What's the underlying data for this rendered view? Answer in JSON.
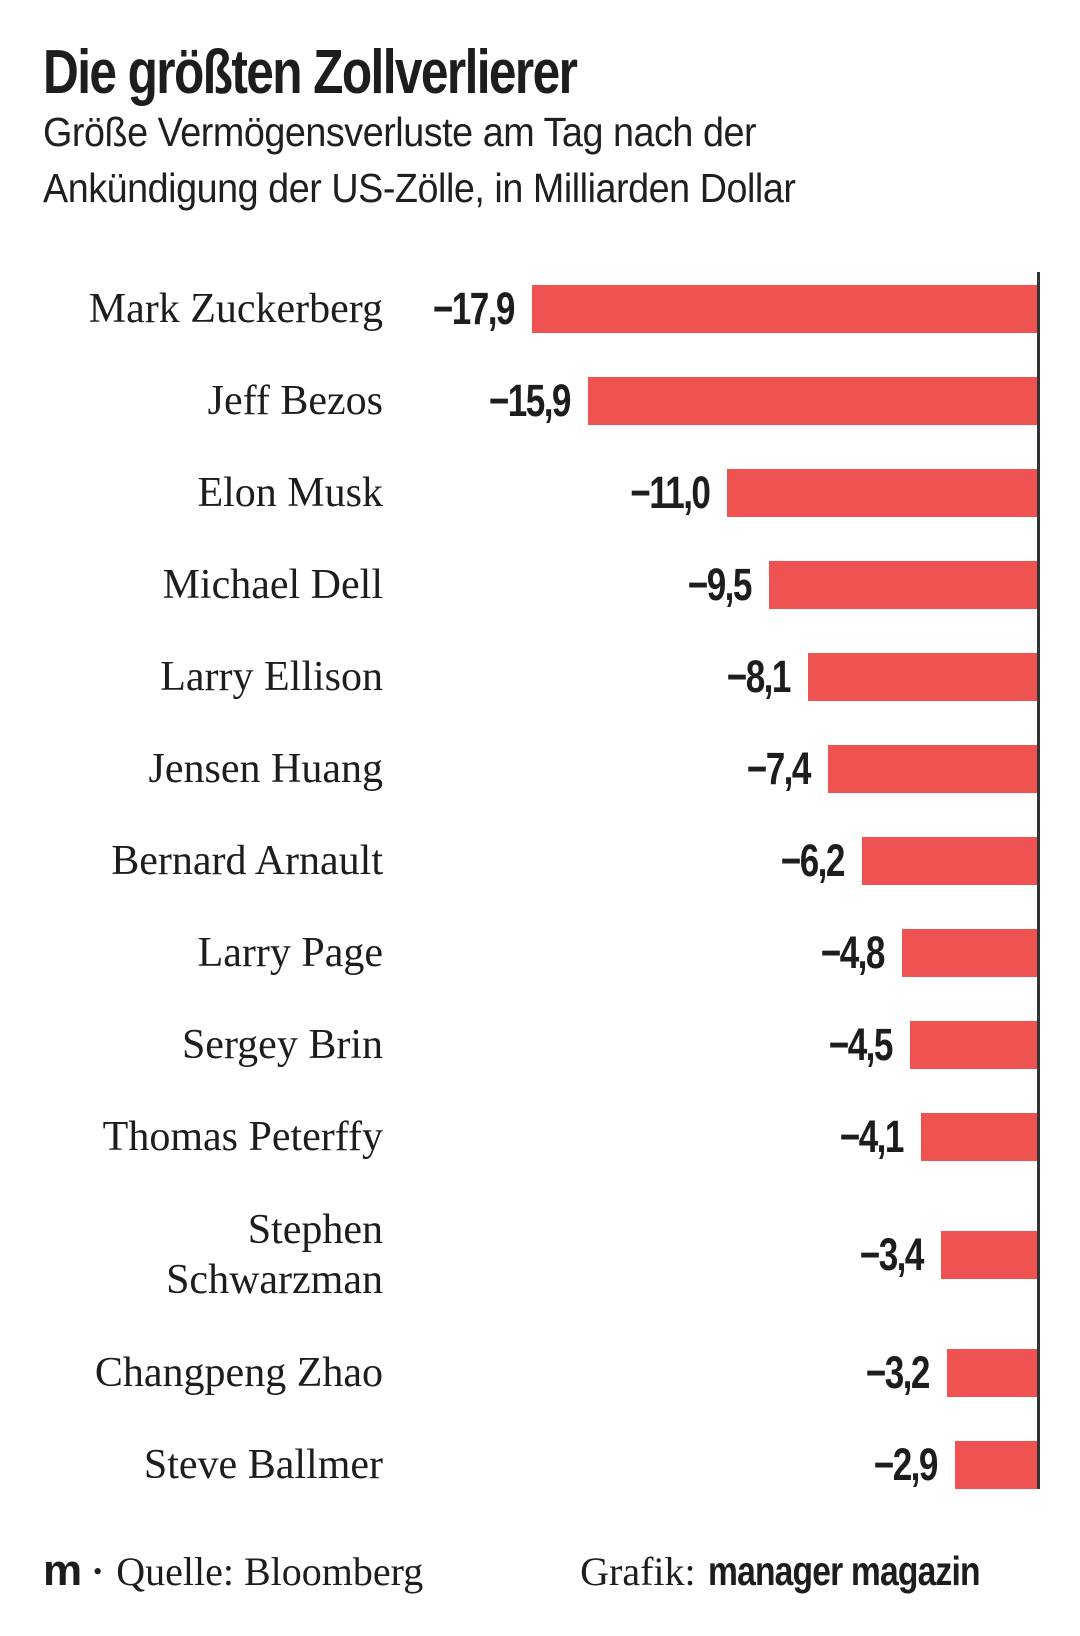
{
  "title": "Die größten Zollverlierer",
  "subtitle_lines": {
    "line1": "Größe Vermögensverluste am Tag nach der",
    "line2": "Ankündigung der US-Zölle, in Milliarden Dollar"
  },
  "footer": {
    "logo": "m",
    "bullet": "•",
    "source": "Quelle: Bloomberg",
    "credit_prefix": "Grafik:",
    "credit_brand": "manager magazin"
  },
  "colors": {
    "bar": "#EF5351",
    "axis": "#333333",
    "text": "#1D1D1B"
  },
  "chart_data": {
    "type": "bar",
    "orientation": "horizontal",
    "anchor": "right-axis-at-zero",
    "title": "Die größten Zollverlierer",
    "subtitle": "Größe Vermögensverluste am Tag nach der Ankündigung der US-Zölle, in Milliarden Dollar",
    "unit": "Milliarden Dollar",
    "source": "Bloomberg",
    "grid": false,
    "legend": false,
    "xlim": [
      -17.9,
      0
    ],
    "categories": [
      "Mark Zuckerberg",
      "Jeff Bezos",
      "Elon Musk",
      "Michael Dell",
      "Larry Ellison",
      "Jensen Huang",
      "Bernard Arnault",
      "Larry Page",
      "Sergey Brin",
      "Thomas Peterffy",
      "Stephen Schwarzman",
      "Changpeng Zhao",
      "Steve Ballmer"
    ],
    "values": [
      -17.9,
      -15.9,
      -11.0,
      -9.5,
      -8.1,
      -7.4,
      -6.2,
      -4.8,
      -4.5,
      -4.1,
      -3.4,
      -3.2,
      -2.9
    ],
    "value_labels": [
      "−17,9",
      "−15,9",
      "−11,0",
      "−9,5",
      "−8,1",
      "−7,4",
      "−6,2",
      "−4,8",
      "−4,5",
      "−4,1",
      "−3,4",
      "−3,2",
      "−2,9"
    ]
  }
}
